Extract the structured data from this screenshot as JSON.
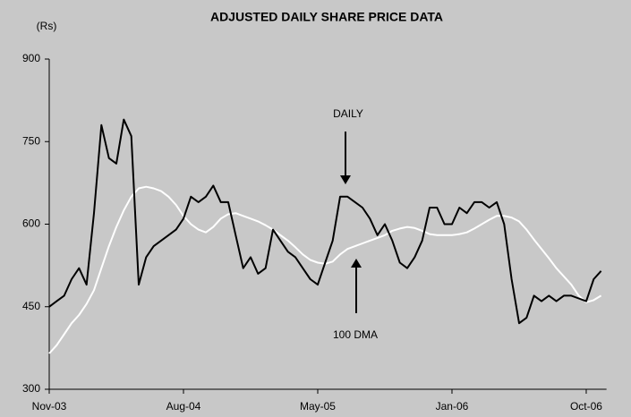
{
  "chart_data": {
    "type": "line",
    "title": "ADJUSTED DAILY SHARE PRICE DATA",
    "y_label": "(Rs)",
    "annotations": [
      "DAILY",
      "100 DMA"
    ],
    "categories": [
      "Nov-03",
      null,
      null,
      null,
      null,
      null,
      null,
      null,
      null,
      null,
      null,
      null,
      null,
      null,
      null,
      null,
      null,
      null,
      "Aug-04",
      null,
      null,
      null,
      null,
      null,
      null,
      null,
      null,
      null,
      null,
      null,
      null,
      null,
      null,
      null,
      null,
      null,
      "May-05",
      null,
      null,
      null,
      null,
      null,
      null,
      null,
      null,
      null,
      null,
      null,
      null,
      null,
      null,
      null,
      null,
      null,
      "Jan-06",
      null,
      null,
      null,
      null,
      null,
      null,
      null,
      null,
      null,
      null,
      null,
      null,
      null,
      null,
      null,
      null,
      null,
      "Oct-06",
      null,
      null
    ],
    "series": [
      {
        "name": "DAILY",
        "color": "#000000",
        "values": [
          450,
          460,
          470,
          500,
          520,
          490,
          620,
          780,
          720,
          710,
          790,
          760,
          490,
          540,
          560,
          570,
          580,
          590,
          610,
          650,
          640,
          650,
          670,
          640,
          640,
          580,
          520,
          540,
          510,
          520,
          590,
          570,
          550,
          540,
          520,
          500,
          490,
          530,
          570,
          650,
          650,
          640,
          630,
          610,
          580,
          600,
          570,
          530,
          520,
          540,
          570,
          630,
          630,
          600,
          600,
          630,
          620,
          640,
          640,
          630,
          640,
          600,
          500,
          420,
          430,
          470,
          460,
          470,
          460,
          470,
          470,
          465,
          460,
          500,
          515
        ]
      },
      {
        "name": "100 DMA",
        "color": "#ffffff",
        "values": [
          365,
          380,
          400,
          420,
          435,
          455,
          480,
          520,
          560,
          595,
          625,
          650,
          665,
          668,
          665,
          660,
          650,
          635,
          615,
          600,
          590,
          585,
          595,
          610,
          618,
          620,
          615,
          610,
          605,
          598,
          590,
          580,
          570,
          558,
          545,
          535,
          530,
          528,
          532,
          545,
          555,
          560,
          565,
          570,
          575,
          580,
          588,
          592,
          595,
          593,
          588,
          582,
          580,
          580,
          580,
          582,
          585,
          592,
          600,
          608,
          615,
          615,
          612,
          605,
          590,
          572,
          555,
          538,
          520,
          505,
          490,
          470,
          458,
          462,
          470
        ]
      }
    ],
    "ylim": [
      300,
      900
    ],
    "yticks": [
      300,
      450,
      600,
      750,
      900
    ]
  }
}
